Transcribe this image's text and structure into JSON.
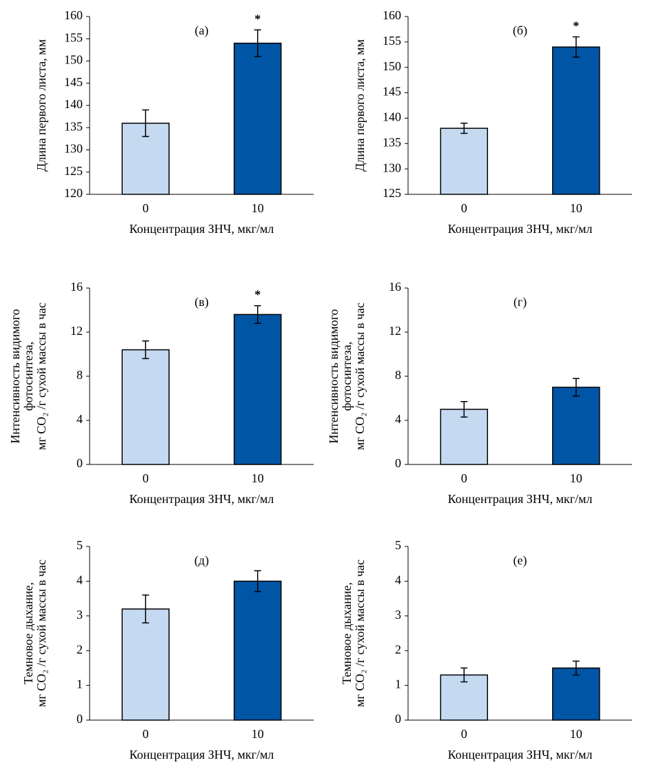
{
  "chart_data": [
    {
      "type": "bar",
      "label": "(а)",
      "ylabel": [
        "Длина первого листа, мм"
      ],
      "xlabel": "Концентрация ЗНЧ, мкг/мл",
      "categories": [
        "0",
        "10"
      ],
      "values": [
        136,
        154
      ],
      "errors": [
        3,
        3
      ],
      "markers": [
        null,
        "*"
      ],
      "colors": [
        "#c5d9f1",
        "#0055a5"
      ],
      "ylim": [
        120,
        160
      ],
      "yticks": [
        120,
        125,
        130,
        135,
        140,
        145,
        150,
        155,
        160
      ]
    },
    {
      "type": "bar",
      "label": "(б)",
      "ylabel": [
        "Длина первого листа, мм"
      ],
      "xlabel": "Концентрация ЗНЧ, мкг/мл",
      "categories": [
        "0",
        "10"
      ],
      "values": [
        138,
        154
      ],
      "errors": [
        1,
        2
      ],
      "markers": [
        null,
        "*"
      ],
      "colors": [
        "#c5d9f1",
        "#0055a5"
      ],
      "ylim": [
        125,
        160
      ],
      "yticks": [
        125,
        130,
        135,
        140,
        145,
        150,
        155,
        160
      ]
    },
    {
      "type": "bar",
      "label": "(в)",
      "ylabel": [
        "Интенсивность видимого",
        "фотосинтеза,",
        "мг CO₂ /г сухой массы в час"
      ],
      "xlabel": "Концентрация ЗНЧ, мкг/мл",
      "categories": [
        "0",
        "10"
      ],
      "values": [
        10.4,
        13.6
      ],
      "errors": [
        0.8,
        0.8
      ],
      "markers": [
        null,
        "*"
      ],
      "colors": [
        "#c5d9f1",
        "#0055a5"
      ],
      "ylim": [
        0,
        16
      ],
      "yticks": [
        0,
        4,
        8,
        12,
        16
      ]
    },
    {
      "type": "bar",
      "label": "(г)",
      "ylabel": [
        "Интенсивность видимого",
        "фотосинтеза,",
        "мг CO₂ /г сухой массы в час"
      ],
      "xlabel": "Концентрация ЗНЧ, мкг/мл",
      "categories": [
        "0",
        "10"
      ],
      "values": [
        5,
        7
      ],
      "errors": [
        0.7,
        0.8
      ],
      "colors": [
        "#c5d9f1",
        "#0055a5"
      ],
      "ylim": [
        0,
        16
      ],
      "yticks": [
        0,
        4,
        8,
        12,
        16
      ]
    },
    {
      "type": "bar",
      "label": "(д)",
      "ylabel": [
        "Темновое дыхание,",
        "мг CO₂ /г сухой массы в час"
      ],
      "xlabel": "Концентрация ЗНЧ, мкг/мл",
      "categories": [
        "0",
        "10"
      ],
      "values": [
        3.2,
        4.0
      ],
      "errors": [
        0.4,
        0.3
      ],
      "colors": [
        "#c5d9f1",
        "#0055a5"
      ],
      "ylim": [
        0,
        5
      ],
      "yticks": [
        0,
        1,
        2,
        3,
        4,
        5
      ]
    },
    {
      "type": "bar",
      "label": "(е)",
      "ylabel": [
        "Темновое дыхание,",
        "мг CO₂ /г сухой массы в час"
      ],
      "xlabel": "Концентрация ЗНЧ, мкг/мл",
      "categories": [
        "0",
        "10"
      ],
      "values": [
        1.3,
        1.5
      ],
      "errors": [
        0.2,
        0.2
      ],
      "colors": [
        "#c5d9f1",
        "#0055a5"
      ],
      "ylim": [
        0,
        5
      ],
      "yticks": [
        0,
        1,
        2,
        3,
        4,
        5
      ]
    }
  ]
}
